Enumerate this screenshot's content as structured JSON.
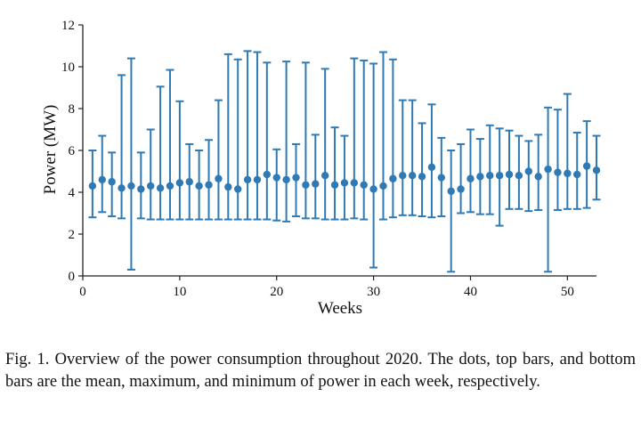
{
  "chart_data": {
    "type": "errorbar",
    "xlabel": "Weeks",
    "ylabel": "Power (MW)",
    "xlim": [
      0,
      53
    ],
    "ylim": [
      0,
      12
    ],
    "xticks": [
      "0",
      "10",
      "20",
      "30",
      "40",
      "50"
    ],
    "yticks": [
      "0",
      "2",
      "4",
      "6",
      "8",
      "10",
      "12"
    ],
    "grid": false,
    "color": "#2f7ab5",
    "series": [
      {
        "x": [
          1,
          2,
          3,
          4,
          5,
          6,
          7,
          8,
          9,
          10,
          11,
          12,
          13,
          14,
          15,
          16,
          17,
          18,
          19,
          20,
          21,
          22,
          23,
          24,
          25,
          26,
          27,
          28,
          29,
          30,
          31,
          32,
          33,
          34,
          35,
          36,
          37,
          38,
          39,
          40,
          41,
          42,
          43,
          44,
          45,
          46,
          47,
          48,
          49,
          50,
          51,
          52,
          53
        ],
        "mean": [
          4.3,
          4.6,
          4.5,
          4.2,
          4.3,
          4.15,
          4.3,
          4.2,
          4.3,
          4.45,
          4.5,
          4.3,
          4.35,
          4.65,
          4.25,
          4.15,
          4.6,
          4.6,
          4.85,
          4.7,
          4.6,
          4.7,
          4.35,
          4.4,
          4.8,
          4.35,
          4.45,
          4.45,
          4.35,
          4.15,
          4.3,
          4.65,
          4.8,
          4.8,
          4.75,
          5.2,
          4.7,
          4.05,
          4.15,
          4.65,
          4.75,
          4.8,
          4.8,
          4.85,
          4.8,
          5.0,
          4.75,
          5.1,
          4.95,
          4.9,
          4.85,
          5.25,
          5.05
        ],
        "max": [
          6.0,
          6.7,
          5.9,
          9.6,
          10.4,
          5.9,
          7.0,
          9.05,
          9.85,
          8.35,
          6.3,
          6.0,
          6.5,
          8.4,
          10.6,
          10.35,
          10.75,
          10.7,
          10.2,
          6.05,
          10.25,
          6.3,
          10.2,
          6.75,
          9.9,
          7.1,
          6.7,
          10.4,
          10.3,
          10.15,
          10.7,
          10.35,
          8.4,
          8.4,
          7.3,
          8.2,
          6.6,
          6.0,
          6.3,
          7.0,
          6.55,
          7.2,
          7.05,
          6.95,
          6.7,
          6.45,
          6.75,
          8.05,
          7.95,
          8.7,
          6.85,
          7.4,
          6.7
        ],
        "min": [
          2.8,
          3.05,
          2.85,
          2.75,
          0.3,
          2.75,
          2.7,
          2.7,
          2.7,
          2.7,
          2.7,
          2.7,
          2.7,
          2.7,
          2.7,
          2.7,
          2.7,
          2.7,
          2.7,
          2.65,
          2.6,
          2.85,
          2.75,
          2.75,
          2.7,
          2.7,
          2.7,
          2.75,
          2.7,
          0.4,
          2.7,
          2.8,
          2.9,
          2.9,
          2.85,
          2.8,
          2.85,
          0.2,
          3.0,
          3.05,
          2.95,
          2.95,
          2.4,
          3.2,
          3.2,
          3.1,
          3.15,
          0.2,
          3.15,
          3.2,
          3.2,
          3.25,
          3.65
        ]
      }
    ]
  },
  "caption": "Fig. 1.  Overview of the power consumption throughout 2020. The dots, top bars, and bottom bars are the mean, maximum, and minimum of power in each week, respectively."
}
